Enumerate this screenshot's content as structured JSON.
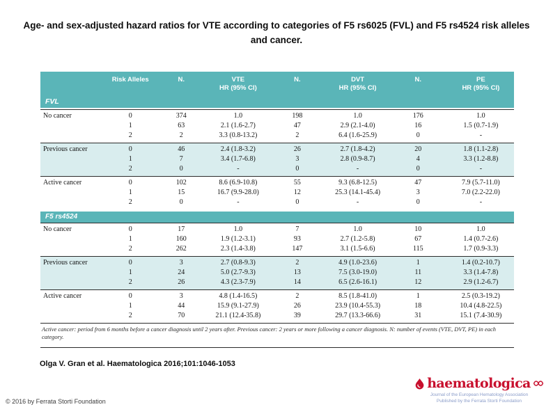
{
  "slide": {
    "title": "Age- and sex-adjusted hazard ratios for VTE according to categories of F5 rs6025 (FVL) and F5 rs4524 risk alleles and cancer.",
    "citation": "Olga V. Gran et al. Haematologica 2016;101:1046-1053",
    "copyright": "© 2016 by Ferrata Storti Foundation"
  },
  "colors": {
    "header_teal": "#5ab5b8",
    "row_shade": "#d9edee",
    "logo_red": "#c8102e",
    "tagline_blue": "#8a9cc9"
  },
  "logo": {
    "wordmark": "haematologica",
    "tagline_line1": "Journal of the European Hematology Association",
    "tagline_line2": "Published by the Ferrata Storti Foundation",
    "drop_icon": "blood-drop-icon",
    "ribbon_icon": "eha-ribbon-icon"
  },
  "table": {
    "corner_label": "FVL",
    "header": {
      "risk_alleles": "Risk Alleles",
      "n1": "N.",
      "vte_line1": "VTE",
      "vte_line2": "HR (95% CI)",
      "n2": "N.",
      "dvt_line1": "DVT",
      "dvt_line2": "HR (95% CI)",
      "n3": "N.",
      "pe_line1": "PE",
      "pe_line2": "HR (95% CI)"
    },
    "sections": [
      {
        "label": "FVL",
        "in_header": true,
        "groups": [
          {
            "category": "No cancer",
            "shaded": false,
            "rows": [
              [
                "0",
                "374",
                "1.0",
                "198",
                "1.0",
                "176",
                "1.0"
              ],
              [
                "1",
                "63",
                "2.1 (1.6-2.7)",
                "47",
                "2.9 (2.1-4.0)",
                "16",
                "1.5 (0.7-1.9)"
              ],
              [
                "2",
                "2",
                "3.3 (0.8-13.2)",
                "2",
                "6.4 (1.6-25.9)",
                "0",
                "-"
              ]
            ]
          },
          {
            "category": "Previous cancer",
            "shaded": true,
            "rows": [
              [
                "0",
                "46",
                "2.4 (1.8-3.2)",
                "26",
                "2.7 (1.8-4.2)",
                "20",
                "1.8 (1.1-2.8)"
              ],
              [
                "1",
                "7",
                "3.4 (1.7-6.8)",
                "3",
                "2.8 (0.9-8.7)",
                "4",
                "3.3 (1.2-8.8)"
              ],
              [
                "2",
                "0",
                "-",
                "0",
                "-",
                "0",
                "-"
              ]
            ]
          },
          {
            "category": "Active cancer",
            "shaded": false,
            "rows": [
              [
                "0",
                "102",
                "8.6 (6.9-10.8)",
                "55",
                "9.3 (6.8-12.5)",
                "47",
                "7.9 (5.7-11.0)"
              ],
              [
                "1",
                "15",
                "16.7 (9.9-28.0)",
                "12",
                "25.3 (14.1-45.4)",
                "3",
                "7.0 (2.2-22.0)"
              ],
              [
                "2",
                "0",
                "-",
                "0",
                "-",
                "0",
                "-"
              ]
            ]
          }
        ]
      },
      {
        "label": "F5 rs4524",
        "in_header": false,
        "groups": [
          {
            "category": "No cancer",
            "shaded": false,
            "rows": [
              [
                "0",
                "17",
                "1.0",
                "7",
                "1.0",
                "10",
                "1.0"
              ],
              [
                "1",
                "160",
                "1.9 (1.2-3.1)",
                "93",
                "2.7 (1.2-5.8)",
                "67",
                "1.4 (0.7-2.6)"
              ],
              [
                "2",
                "262",
                "2.3 (1.4-3.8)",
                "147",
                "3.1 (1.5-6.6)",
                "115",
                "1.7 (0.9-3.3)"
              ]
            ]
          },
          {
            "category": "Previous cancer",
            "shaded": true,
            "rows": [
              [
                "0",
                "3",
                "2.7 (0.8-9.3)",
                "2",
                "4.9 (1.0-23.6)",
                "1",
                "1.4 (0.2-10.7)"
              ],
              [
                "1",
                "24",
                "5.0 (2.7-9.3)",
                "13",
                "7.5 (3.0-19.0)",
                "11",
                "3.3 (1.4-7.8)"
              ],
              [
                "2",
                "26",
                "4.3 (2.3-7.9)",
                "14",
                "6.5 (2.6-16.1)",
                "12",
                "2.9 (1.2-6.7)"
              ]
            ]
          },
          {
            "category": "Active cancer",
            "shaded": false,
            "rows": [
              [
                "0",
                "3",
                "4.8 (1.4-16.5)",
                "2",
                "8.5 (1.8-41.0)",
                "1",
                "2.5 (0.3-19.2)"
              ],
              [
                "1",
                "44",
                "15.9 (9.1-27.9)",
                "26",
                "23.9 (10.4-55.3)",
                "18",
                "10.4 (4.8-22.5)"
              ],
              [
                "2",
                "70",
                "21.1 (12.4-35.8)",
                "39",
                "29.7 (13.3-66.6)",
                "31",
                "15.1 (7.4-30.9)"
              ]
            ]
          }
        ]
      }
    ],
    "footnote": "Active cancer: period from 6 months before a cancer diagnosis until 2 years after. Previous cancer: 2 years or more following a cancer diagnosis. N: number of events (VTE, DVT, PE) in each category."
  }
}
